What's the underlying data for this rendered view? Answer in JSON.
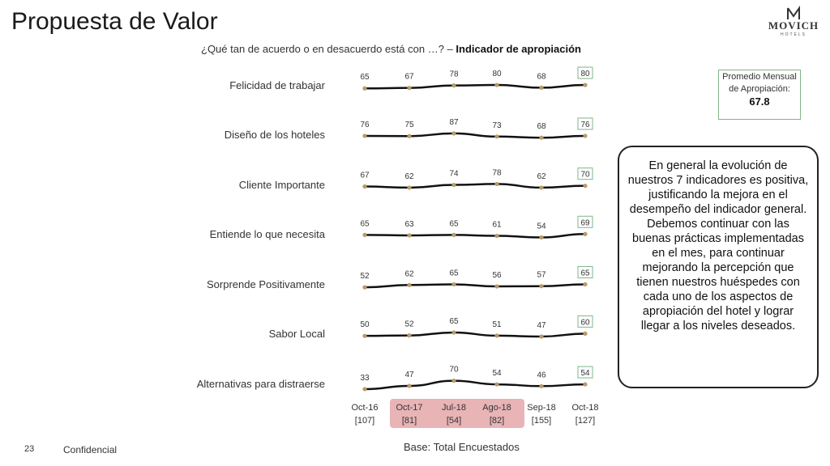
{
  "title": "Propuesta de Valor",
  "logo": {
    "name": "MOVICH",
    "sub": "HOTELS"
  },
  "subtitle": {
    "question": "¿Qué tan de acuerdo o en desacuerdo está con …? –",
    "indicator": "Indicador de apropiación"
  },
  "average_box": {
    "label": "Promedio Mensual de Apropiación:",
    "value": "67.8"
  },
  "comment": "En general la evolución de nuestros 7 indicadores es positiva, justificando la mejora en el desempeño del indicador general. Debemos continuar con las buenas prácticas implementadas en el mes, para continuar mejorando la percepción que tienen nuestros huéspedes con cada uno de los aspectos de apropiación del hotel y lograr llegar a los niveles deseados.",
  "footer": {
    "page": "23",
    "confidential": "Confidencial",
    "base": "Base: Total Encuestados"
  },
  "colors": {
    "line": "#111111",
    "marker": "#b89a6a",
    "highlight_box": "#7fb58a",
    "period_highlight": "#e8b4b6"
  },
  "chart_data": {
    "type": "line",
    "categories": [
      "Oct-16",
      "Oct-17",
      "Jul-18",
      "Ago-18",
      "Sep-18",
      "Oct-18"
    ],
    "bases": [
      "[107]",
      "[81]",
      "[54]",
      "[82]",
      "[155]",
      "[127]"
    ],
    "highlighted_periods": [
      "Oct-17",
      "Jul-18",
      "Ago-18"
    ],
    "series": [
      {
        "name": "Felicidad de trabajar",
        "values": [
          65,
          67,
          78,
          80,
          68,
          80
        ]
      },
      {
        "name": "Diseño de los hoteles",
        "values": [
          76,
          75,
          87,
          73,
          68,
          76
        ]
      },
      {
        "name": "Cliente Importante",
        "values": [
          67,
          62,
          74,
          78,
          62,
          70
        ]
      },
      {
        "name": "Entiende lo que necesita",
        "values": [
          65,
          63,
          65,
          61,
          54,
          69
        ]
      },
      {
        "name": "Sorprende Positivamente",
        "values": [
          52,
          62,
          65,
          56,
          57,
          65
        ]
      },
      {
        "name": "Sabor Local",
        "values": [
          50,
          52,
          65,
          51,
          47,
          60
        ]
      },
      {
        "name": "Alternativas para distraerse",
        "values": [
          33,
          47,
          70,
          54,
          46,
          54
        ]
      }
    ]
  }
}
